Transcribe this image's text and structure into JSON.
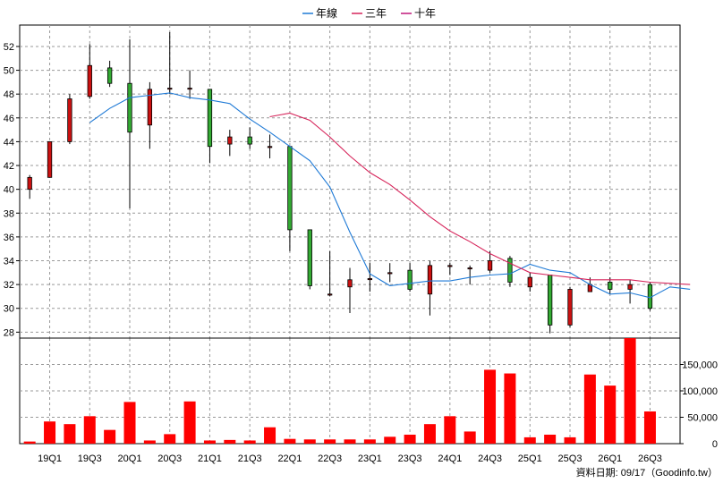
{
  "chart_data": [
    {
      "type": "candlestick",
      "title": "",
      "legend": {
        "position": "top-center",
        "entries": [
          {
            "name": "年線",
            "color": "#1f7ad6"
          },
          {
            "name": "三年",
            "color": "#d6245a"
          },
          {
            "name": "十年",
            "color": "#c0187a"
          }
        ]
      },
      "x_tick_labels": [
        "19Q1",
        "19Q3",
        "20Q1",
        "20Q3",
        "21Q1",
        "21Q3",
        "22Q1",
        "22Q3",
        "23Q1",
        "23Q3",
        "24Q1",
        "24Q3",
        "25Q1",
        "25Q3",
        "26Q1",
        "26Q3"
      ],
      "y_ticks": [
        28,
        30,
        32,
        34,
        36,
        38,
        40,
        42,
        44,
        46,
        48,
        50,
        52
      ],
      "ylim": [
        27.5,
        53.8
      ],
      "grid": true,
      "colors": {
        "up": "#cc1111",
        "down": "#33aa33",
        "body_border": "#000000"
      },
      "candles": [
        {
          "q": "18Q4",
          "open": 40.0,
          "high": 41.2,
          "low": 39.2,
          "close": 41.0
        },
        {
          "q": "19Q1",
          "open": 41.0,
          "high": 44.0,
          "low": 41.0,
          "close": 44.0
        },
        {
          "q": "19Q2",
          "open": 44.0,
          "high": 48.0,
          "low": 43.8,
          "close": 47.6
        },
        {
          "q": "19Q3",
          "open": 47.8,
          "high": 52.2,
          "low": 47.6,
          "close": 50.4
        },
        {
          "q": "19Q4",
          "open": 50.2,
          "high": 50.8,
          "low": 48.6,
          "close": 48.9
        },
        {
          "q": "20Q1",
          "open": 48.9,
          "high": 52.6,
          "low": 38.4,
          "close": 44.8
        },
        {
          "q": "20Q2",
          "open": 45.4,
          "high": 49.0,
          "low": 43.4,
          "close": 48.4
        },
        {
          "q": "20Q3",
          "open": 48.5,
          "high": 53.2,
          "low": 48.0,
          "close": 48.5
        },
        {
          "q": "20Q4",
          "open": 48.5,
          "high": 50.0,
          "low": 47.6,
          "close": 48.5
        },
        {
          "q": "21Q1",
          "open": 48.4,
          "high": 48.4,
          "low": 42.2,
          "close": 43.6
        },
        {
          "q": "21Q2",
          "open": 43.8,
          "high": 45.0,
          "low": 42.8,
          "close": 44.4
        },
        {
          "q": "21Q3",
          "open": 44.4,
          "high": 45.2,
          "low": 43.4,
          "close": 43.8
        },
        {
          "q": "21Q4",
          "open": 43.6,
          "high": 44.6,
          "low": 42.6,
          "close": 43.6
        },
        {
          "q": "22Q1",
          "open": 43.6,
          "high": 43.6,
          "low": 34.8,
          "close": 36.6
        },
        {
          "q": "22Q2",
          "open": 36.6,
          "high": 36.6,
          "low": 31.6,
          "close": 31.9
        },
        {
          "q": "22Q3",
          "open": 31.2,
          "high": 34.8,
          "low": 31.0,
          "close": 31.2
        },
        {
          "q": "22Q4",
          "open": 31.8,
          "high": 33.4,
          "low": 29.6,
          "close": 32.4
        },
        {
          "q": "23Q1",
          "open": 32.5,
          "high": 33.8,
          "low": 31.4,
          "close": 32.5
        },
        {
          "q": "23Q2",
          "open": 33.0,
          "high": 33.8,
          "low": 32.2,
          "close": 33.0
        },
        {
          "q": "23Q3",
          "open": 33.2,
          "high": 33.8,
          "low": 31.4,
          "close": 31.6
        },
        {
          "q": "23Q4",
          "open": 31.2,
          "high": 34.0,
          "low": 29.4,
          "close": 33.6
        },
        {
          "q": "24Q1",
          "open": 33.6,
          "high": 33.8,
          "low": 32.8,
          "close": 33.6
        },
        {
          "q": "24Q2",
          "open": 33.4,
          "high": 33.6,
          "low": 32.0,
          "close": 33.4
        },
        {
          "q": "24Q3",
          "open": 33.2,
          "high": 34.8,
          "low": 33.0,
          "close": 34.0
        },
        {
          "q": "24Q4",
          "open": 34.2,
          "high": 34.4,
          "low": 31.8,
          "close": 32.2
        },
        {
          "q": "25Q1",
          "open": 31.8,
          "high": 33.0,
          "low": 31.4,
          "close": 32.6
        },
        {
          "q": "25Q2",
          "open": 32.8,
          "high": 32.8,
          "low": 27.9,
          "close": 28.6
        },
        {
          "q": "25Q3",
          "open": 28.6,
          "high": 31.8,
          "low": 28.4,
          "close": 31.6
        },
        {
          "q": "25Q4",
          "open": 31.4,
          "high": 32.6,
          "low": 31.4,
          "close": 32.0
        },
        {
          "q": "26Q1",
          "open": 32.2,
          "high": 32.6,
          "low": 31.2,
          "close": 31.6
        },
        {
          "q": "26Q2",
          "open": 31.6,
          "high": 32.4,
          "low": 30.4,
          "close": 32.0
        },
        {
          "q": "26Q3",
          "open": 32.0,
          "high": 32.2,
          "low": 29.8,
          "close": 30.0
        }
      ],
      "lines": [
        {
          "name": "年線",
          "color": "#1f7ad6",
          "points": [
            [
              3,
              45.6
            ],
            [
              4,
              46.8
            ],
            [
              5,
              47.7
            ],
            [
              6,
              47.9
            ],
            [
              7,
              48.1
            ],
            [
              8,
              47.7
            ],
            [
              9,
              47.5
            ],
            [
              10,
              47.2
            ],
            [
              11,
              45.9
            ],
            [
              12,
              44.8
            ],
            [
              13,
              43.6
            ],
            [
              14,
              42.4
            ],
            [
              15,
              40.2
            ],
            [
              16,
              36.4
            ],
            [
              17,
              32.9
            ],
            [
              18,
              31.9
            ],
            [
              19,
              32.1
            ],
            [
              20,
              32.3
            ],
            [
              21,
              32.3
            ],
            [
              22,
              32.6
            ],
            [
              23,
              32.8
            ],
            [
              24,
              32.9
            ],
            [
              25,
              33.7
            ],
            [
              26,
              33.2
            ],
            [
              27,
              33.0
            ],
            [
              28,
              32.0
            ],
            [
              29,
              31.2
            ],
            [
              30,
              31.3
            ],
            [
              31,
              30.9
            ],
            [
              32,
              31.8
            ],
            [
              33,
              31.6
            ]
          ]
        },
        {
          "name": "三年",
          "color": "#d6245a",
          "points": [
            [
              12,
              46.1
            ],
            [
              13,
              46.4
            ],
            [
              14,
              45.8
            ],
            [
              15,
              44.4
            ],
            [
              16,
              42.8
            ],
            [
              17,
              41.4
            ],
            [
              18,
              40.4
            ],
            [
              19,
              39.1
            ],
            [
              20,
              37.7
            ],
            [
              21,
              36.5
            ],
            [
              22,
              35.6
            ],
            [
              23,
              34.6
            ],
            [
              24,
              33.8
            ],
            [
              25,
              33.0
            ],
            [
              26,
              32.8
            ],
            [
              27,
              32.6
            ],
            [
              28,
              32.4
            ],
            [
              29,
              32.4
            ],
            [
              30,
              32.4
            ],
            [
              31,
              32.2
            ],
            [
              32,
              32.1
            ],
            [
              33,
              32.0
            ]
          ]
        }
      ]
    },
    {
      "type": "bar",
      "name": "volume",
      "color": "#ff0000",
      "y_tick_labels": [
        "150,000",
        "100,000",
        "50,000",
        "0"
      ],
      "y_tick_values": [
        150000,
        100000,
        50000,
        0
      ],
      "ylim": [
        0,
        200000
      ],
      "values": [
        4000,
        42000,
        37000,
        52000,
        26000,
        79000,
        6000,
        18000,
        80000,
        6000,
        7000,
        6000,
        31000,
        9000,
        8000,
        8000,
        8000,
        8000,
        13000,
        17000,
        37000,
        52000,
        23000,
        140000,
        133000,
        12000,
        17000,
        12000,
        131000,
        110000,
        200000,
        61000
      ]
    }
  ],
  "footer": {
    "text": "資料日期: 09/17（Goodinfo.tw）"
  }
}
